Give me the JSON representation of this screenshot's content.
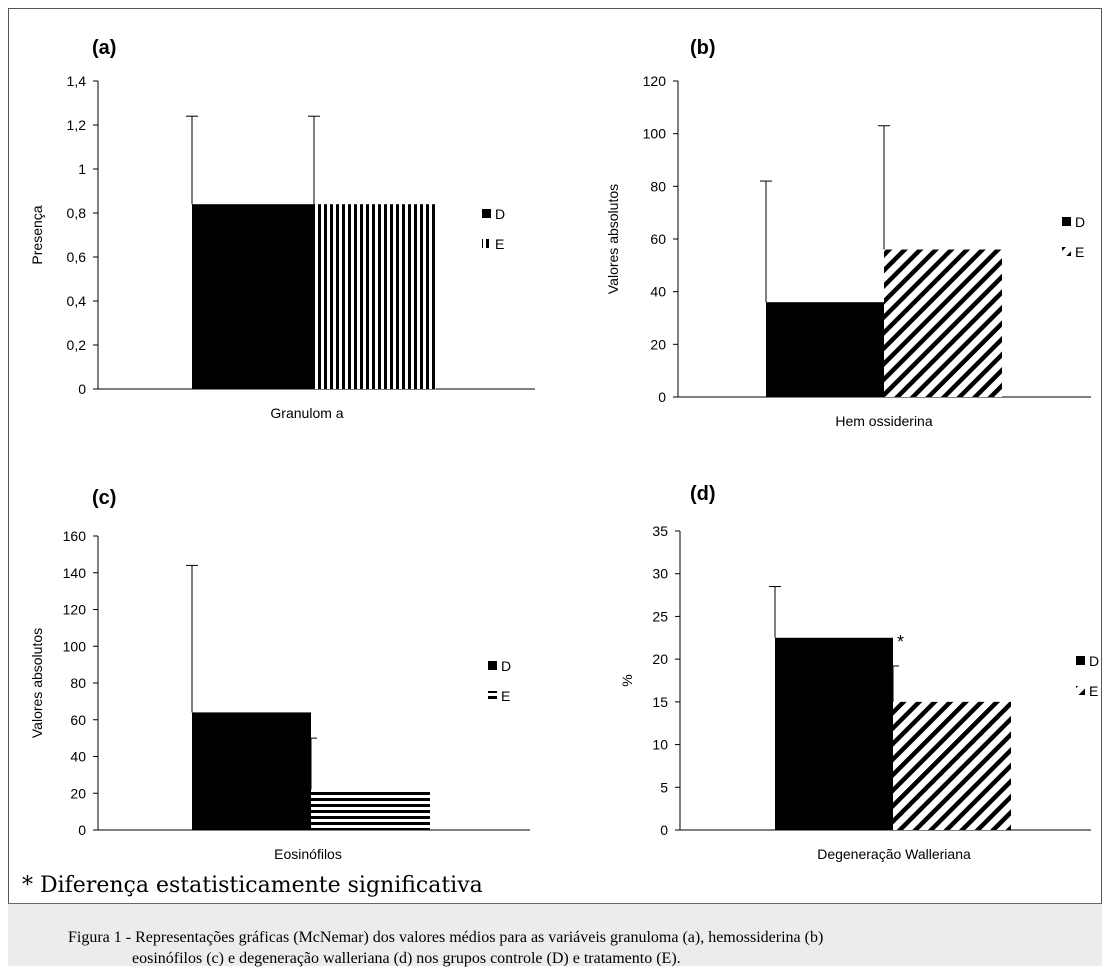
{
  "figure": {
    "footnote": "* Diferença estatisticamente significativa",
    "caption_label": "Figura 1 - ",
    "caption_line1": "Representações gráficas (McNemar) dos valores médios para as variáveis granuloma (a), hemossiderina (b)",
    "caption_line2": "eosinófilos (c) e degeneração walleriana (d) nos grupos controle (D) e tratamento (E)."
  },
  "chart_data": [
    {
      "type": "bar",
      "panel": "(a)",
      "categories": [
        "Granulom a"
      ],
      "series": [
        {
          "name": "D",
          "values": [
            0.84
          ],
          "error_top": [
            1.24
          ],
          "pattern": "solid"
        },
        {
          "name": "E",
          "values": [
            0.84
          ],
          "error_top": [
            1.24
          ],
          "pattern": "vertical"
        }
      ],
      "ylabel": "Presença",
      "xlabel": "Granulom a",
      "ylim": [
        0,
        1.4
      ],
      "yticks": [
        "0",
        "0,2",
        "0,4",
        "0,6",
        "0,8",
        "1",
        "1,2",
        "1,4"
      ],
      "legend": "right",
      "color": "#000000"
    },
    {
      "type": "bar",
      "panel": "(b)",
      "categories": [
        "Hemossiderina"
      ],
      "series": [
        {
          "name": "D",
          "values": [
            36
          ],
          "error_top": [
            82
          ],
          "pattern": "solid"
        },
        {
          "name": "E",
          "values": [
            56
          ],
          "error_top": [
            103
          ],
          "pattern": "diagonal"
        }
      ],
      "ylabel": "Valores absolutos",
      "xlabel": "Hem ossiderina",
      "ylim": [
        0,
        120
      ],
      "yticks": [
        "0",
        "20",
        "40",
        "60",
        "80",
        "100",
        "120"
      ],
      "legend": "right",
      "color": "#000000"
    },
    {
      "type": "bar",
      "panel": "(c)",
      "categories": [
        "Eosinófilos"
      ],
      "series": [
        {
          "name": "D",
          "values": [
            64
          ],
          "error_top": [
            144
          ],
          "pattern": "solid"
        },
        {
          "name": "E",
          "values": [
            22
          ],
          "error_top": [
            50
          ],
          "pattern": "horizontal"
        }
      ],
      "ylabel": "Valores absolutos",
      "xlabel": "Eosinófilos",
      "ylim": [
        0,
        160
      ],
      "yticks": [
        "0",
        "20",
        "40",
        "60",
        "80",
        "100",
        "120",
        "140",
        "160"
      ],
      "legend": "right",
      "color": "#000000"
    },
    {
      "type": "bar",
      "panel": "(d)",
      "categories": [
        "Degeneração Walleriana"
      ],
      "series": [
        {
          "name": "D",
          "values": [
            22.5
          ],
          "error_top": [
            28.5
          ],
          "pattern": "solid"
        },
        {
          "name": "E",
          "values": [
            15
          ],
          "error_top": [
            19.2
          ],
          "pattern": "diagonal"
        }
      ],
      "ylabel": "%",
      "xlabel": "Degeneração Walleriana",
      "ylim": [
        0,
        35
      ],
      "yticks": [
        "0",
        "5",
        "10",
        "15",
        "20",
        "25",
        "30",
        "35"
      ],
      "annotations": [
        {
          "text": "*",
          "series": "E"
        }
      ],
      "legend": "right",
      "color": "#000000"
    }
  ]
}
